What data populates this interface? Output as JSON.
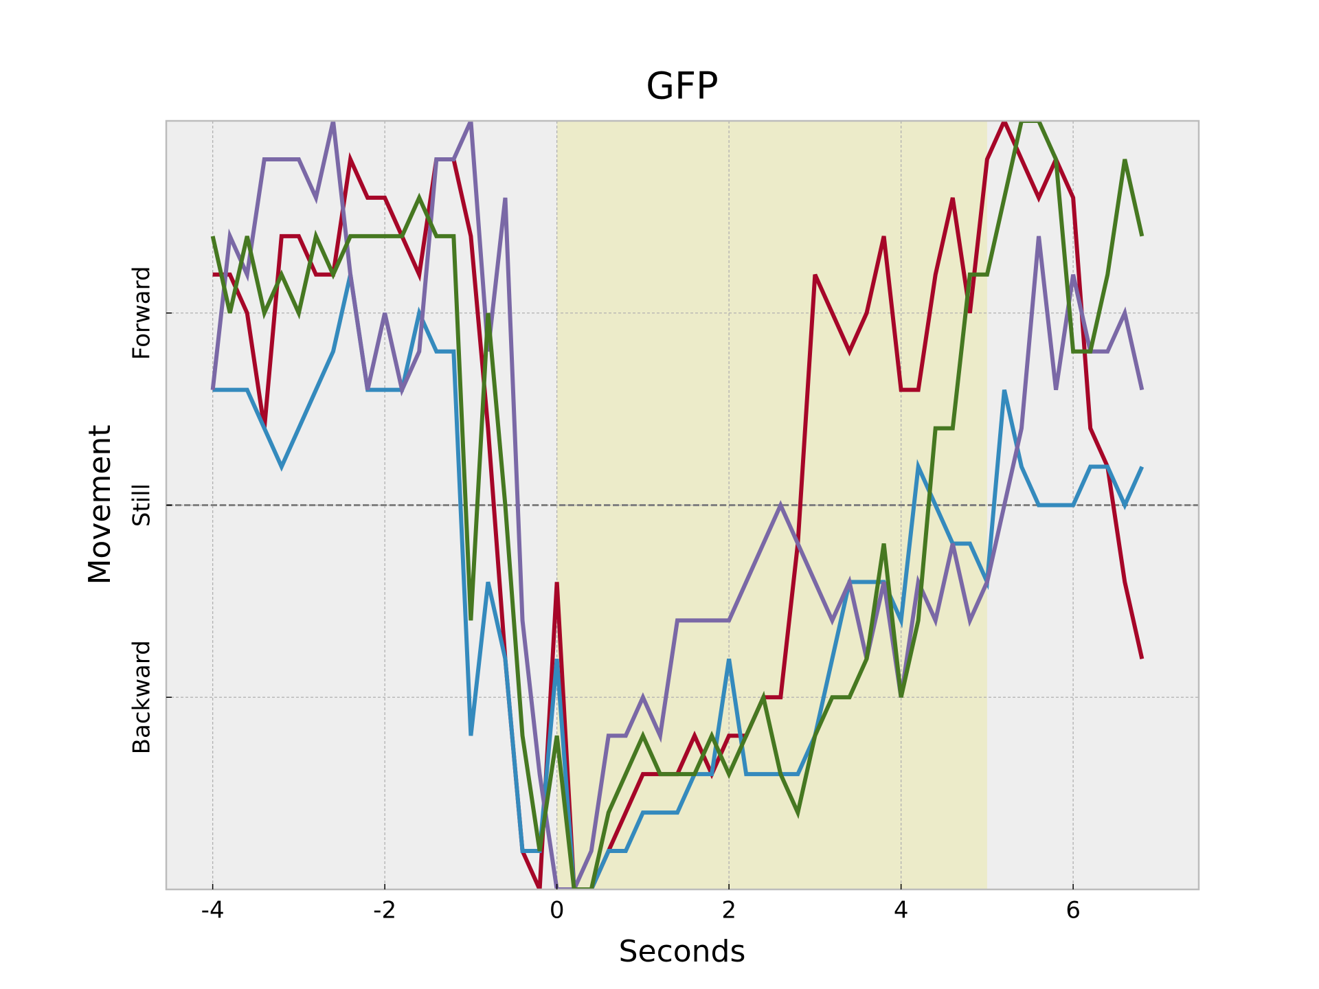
{
  "chart_data": {
    "type": "line",
    "title": "GFP",
    "xlabel": "Seconds",
    "ylabel": "Movement",
    "x": [
      -4.0,
      -3.8,
      -3.6,
      -3.4,
      -3.2,
      -3.0,
      -2.8,
      -2.6,
      -2.4,
      -2.2,
      -2.0,
      -1.8,
      -1.6,
      -1.4,
      -1.2,
      -1.0,
      -0.8,
      -0.6,
      -0.4,
      -0.2,
      0.0,
      0.2,
      0.4,
      0.6,
      0.8,
      1.0,
      1.2,
      1.4,
      1.6,
      1.8,
      2.0,
      2.2,
      2.4,
      2.6,
      2.8,
      3.0,
      3.2,
      3.4,
      3.6,
      3.8,
      4.0,
      4.2,
      4.4,
      4.6,
      4.8,
      5.0,
      5.2,
      5.4,
      5.6,
      5.8,
      6.0,
      6.2,
      6.4,
      6.6,
      6.8
    ],
    "series": [
      {
        "color": "#a60628",
        "values": [
          1.2,
          1.2,
          1.0,
          0.4,
          1.4,
          1.4,
          1.2,
          1.2,
          1.8,
          1.6,
          1.6,
          1.4,
          1.2,
          1.8,
          1.8,
          1.4,
          0.4,
          -0.8,
          -1.8,
          -2,
          -0.4,
          -2,
          -2,
          -1.8,
          -1.6,
          -1.4,
          -1.4,
          -1.4,
          -1.2,
          -1.4,
          -1.2,
          -1.2,
          -1.0,
          -1.0,
          -0.2,
          1.2,
          1.0,
          0.8,
          1.0,
          1.4,
          0.6,
          0.6,
          1.2,
          1.6,
          1.0,
          1.8,
          2.0,
          1.8,
          1.6,
          1.8,
          1.6,
          0.4,
          0.2,
          -0.4,
          -0.8
        ]
      },
      {
        "color": "#348abd",
        "values": [
          0.6,
          0.6,
          0.6,
          0.4,
          0.2,
          0.4,
          0.6,
          0.8,
          1.2,
          0.6,
          0.6,
          0.6,
          1.0,
          0.8,
          0.8,
          -1.2,
          -0.4,
          -0.8,
          -1.8,
          -1.8,
          -0.8,
          -2,
          -2,
          -1.8,
          -1.8,
          -1.6,
          -1.6,
          -1.6,
          -1.4,
          -1.4,
          -0.8,
          -1.4,
          -1.4,
          -1.4,
          -1.4,
          -1.2,
          -0.8,
          -0.4,
          -0.4,
          -0.4,
          -0.6,
          0.2,
          0.0,
          -0.2,
          -0.2,
          -0.4,
          0.6,
          0.2,
          0.0,
          0.0,
          0.0,
          0.2,
          0.2,
          0.0,
          0.2
        ]
      },
      {
        "color": "#7a68a6",
        "values": [
          0.6,
          1.4,
          1.2,
          1.8,
          1.8,
          1.8,
          1.6,
          2.0,
          1.2,
          0.6,
          1.0,
          0.6,
          0.8,
          1.8,
          1.8,
          2.0,
          0.8,
          1.6,
          -0.6,
          -1.4,
          -2,
          -2,
          -1.8,
          -1.2,
          -1.2,
          -1.0,
          -1.2,
          -0.6,
          -0.6,
          -0.6,
          -0.6,
          -0.4,
          -0.2,
          0.0,
          -0.2,
          -0.4,
          -0.6,
          -0.4,
          -0.8,
          -0.4,
          -1.0,
          -0.4,
          -0.6,
          -0.2,
          -0.6,
          -0.4,
          0.0,
          0.4,
          1.4,
          0.6,
          1.2,
          0.8,
          0.8,
          1.0,
          0.6
        ]
      },
      {
        "color": "#467821",
        "values": [
          1.4,
          1.0,
          1.4,
          1.0,
          1.2,
          1.0,
          1.4,
          1.2,
          1.4,
          1.4,
          1.4,
          1.4,
          1.6,
          1.4,
          1.4,
          -0.6,
          1.0,
          0.0,
          -1.2,
          -1.8,
          -1.2,
          -2,
          -2,
          -1.6,
          -1.4,
          -1.2,
          -1.4,
          -1.4,
          -1.4,
          -1.2,
          -1.4,
          -1.2,
          -1.0,
          -1.4,
          -1.6,
          -1.2,
          -1.0,
          -1.0,
          -0.8,
          -0.2,
          -1.0,
          -0.6,
          0.4,
          0.4,
          1.2,
          1.2,
          1.6,
          2.0,
          2.0,
          1.8,
          0.8,
          0.8,
          1.2,
          1.8,
          1.4
        ]
      }
    ],
    "xlim": [
      -4.54,
      7.46
    ],
    "ylim": [
      -2,
      2
    ],
    "xticks": [
      -4,
      -2,
      0,
      2,
      4,
      6
    ],
    "yticks": [
      {
        "value": -1,
        "label": "Backward"
      },
      {
        "value": 0,
        "label": "Still"
      },
      {
        "value": 1,
        "label": "Forward"
      }
    ],
    "span": {
      "x": [
        0,
        5
      ],
      "color": "#ecebc9"
    },
    "hline": 0,
    "grid": true
  }
}
